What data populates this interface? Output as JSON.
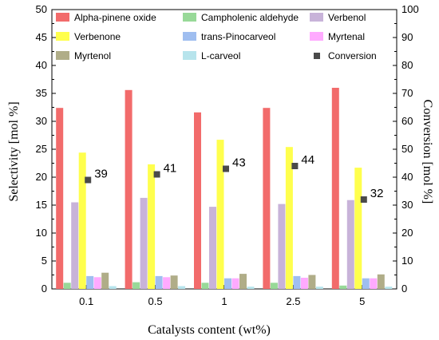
{
  "chart_data": {
    "type": "bar",
    "categories": [
      "0.1",
      "0.5",
      "1",
      "2.5",
      "5"
    ],
    "xlabel": "Catalysts content (wt%)",
    "ylabel": "Selectivity [mol %]",
    "y2label": "Conversion [mol %]",
    "ylim": [
      0,
      50
    ],
    "y2lim": [
      0,
      100
    ],
    "yticks": [
      0,
      5,
      10,
      15,
      20,
      25,
      30,
      35,
      40,
      45,
      50
    ],
    "y2ticks": [
      0,
      10,
      20,
      30,
      40,
      50,
      60,
      70,
      80,
      90,
      100
    ],
    "legend_placement": "top",
    "series": [
      {
        "name": "Alpha-pinene oxide",
        "color": "#f26b6b",
        "values": [
          32.4,
          35.6,
          31.6,
          32.4,
          36.0
        ]
      },
      {
        "name": "Campholenic aldehyde",
        "color": "#98d998",
        "values": [
          1.1,
          1.2,
          1.1,
          1.1,
          0.6
        ]
      },
      {
        "name": "Verbenol",
        "color": "#c8b3d9",
        "values": [
          15.5,
          16.3,
          14.7,
          15.2,
          15.9
        ]
      },
      {
        "name": "Verbenone",
        "color": "#ffff4d",
        "values": [
          24.4,
          22.3,
          26.7,
          25.4,
          21.7
        ]
      },
      {
        "name": "trans-Pinocarveol",
        "color": "#9fbef0",
        "values": [
          2.3,
          2.3,
          1.9,
          2.3,
          1.9
        ]
      },
      {
        "name": "Myrtenal",
        "color": "#ffaaff",
        "values": [
          2.1,
          2.1,
          1.9,
          2.0,
          1.9
        ]
      },
      {
        "name": "Myrtenol",
        "color": "#b0ad88",
        "values": [
          2.9,
          2.4,
          2.7,
          2.5,
          2.6
        ]
      },
      {
        "name": "L-carveol",
        "color": "#b7e4ec",
        "values": [
          0.5,
          0.5,
          0.4,
          0.4,
          0.4
        ]
      }
    ],
    "conversion": {
      "name": "Conversion",
      "color": "#4a4a4a",
      "values": [
        39,
        41,
        43,
        44,
        32
      ],
      "labels": [
        "39",
        "41",
        "43",
        "44",
        "32"
      ]
    }
  }
}
